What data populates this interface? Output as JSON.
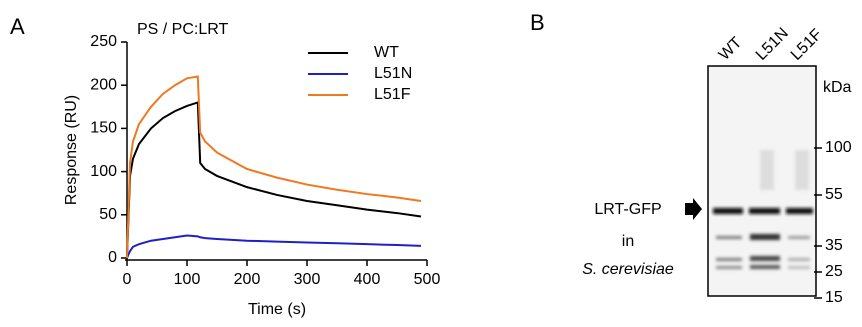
{
  "panels": [
    "A",
    "B"
  ],
  "chart_data": {
    "type": "line",
    "title": "PS / PC:LRT",
    "xlabel": "Time (s)",
    "ylabel": "Response (RU)",
    "x": [
      0,
      5,
      10,
      20,
      40,
      60,
      80,
      100,
      118,
      122,
      130,
      150,
      200,
      250,
      300,
      350,
      400,
      450,
      490
    ],
    "series": [
      {
        "name": "WT",
        "color": "#000000",
        "values": [
          0,
          95,
          115,
          132,
          150,
          162,
          170,
          176,
          180,
          110,
          103,
          95,
          82,
          73,
          66,
          61,
          56,
          52,
          48
        ]
      },
      {
        "name": "L51N",
        "color": "#1f1fc8",
        "values": [
          0,
          8,
          13,
          16,
          20,
          22,
          24,
          26,
          25,
          24,
          23,
          22,
          20,
          19,
          18,
          17,
          16,
          15,
          14
        ]
      },
      {
        "name": "L51F",
        "color": "#f07820",
        "values": [
          0,
          110,
          135,
          155,
          175,
          190,
          200,
          208,
          210,
          145,
          135,
          122,
          103,
          93,
          85,
          79,
          74,
          70,
          66
        ]
      }
    ],
    "xlim": [
      0,
      500
    ],
    "xticks": [
      0,
      100,
      200,
      300,
      400,
      500
    ],
    "ylim": [
      0,
      250
    ],
    "yticks": [
      0,
      50,
      100,
      150,
      200,
      250
    ],
    "grid": false,
    "legend": "upper right"
  },
  "blot": {
    "lanes": [
      "WT",
      "L51N",
      "L51F"
    ],
    "marker_unit": "kDa",
    "markers": [
      "100",
      "55",
      "35",
      "25",
      "15"
    ],
    "label": [
      "LRT-GFP",
      "in",
      "S. cerevisiae"
    ]
  }
}
